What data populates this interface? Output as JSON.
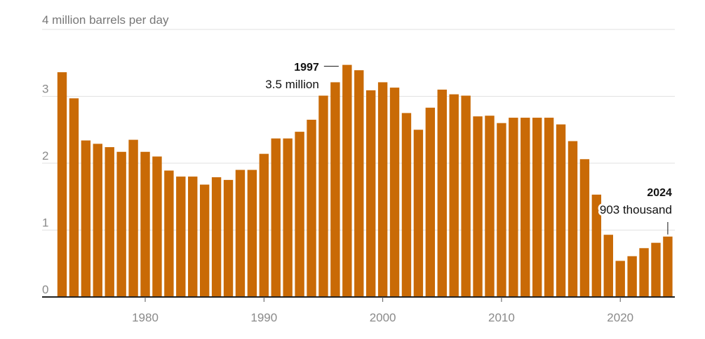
{
  "chart_data": {
    "type": "bar",
    "ylabel": "4 million barrels per day",
    "ylim": [
      0,
      4
    ],
    "yticks": [
      0,
      1,
      2,
      3
    ],
    "ytick_labels": [
      "0",
      "1",
      "2",
      "3"
    ],
    "xticks": [
      1980,
      1990,
      2000,
      2010,
      2020
    ],
    "xtick_labels": [
      "1980",
      "1990",
      "2000",
      "2010",
      "2020"
    ],
    "grid": true,
    "color": "#c96a06",
    "categories": [
      1973,
      1974,
      1975,
      1976,
      1977,
      1978,
      1979,
      1980,
      1981,
      1982,
      1983,
      1984,
      1985,
      1986,
      1987,
      1988,
      1989,
      1990,
      1991,
      1992,
      1993,
      1994,
      1995,
      1996,
      1997,
      1998,
      1999,
      2000,
      2001,
      2002,
      2003,
      2004,
      2005,
      2006,
      2007,
      2008,
      2009,
      2010,
      2011,
      2012,
      2013,
      2014,
      2015,
      2016,
      2017,
      2018,
      2019,
      2020,
      2021,
      2022,
      2023,
      2024
    ],
    "values": [
      3.36,
      2.97,
      2.34,
      2.29,
      2.24,
      2.17,
      2.35,
      2.17,
      2.1,
      1.89,
      1.8,
      1.8,
      1.68,
      1.79,
      1.75,
      1.9,
      1.9,
      2.14,
      2.37,
      2.37,
      2.47,
      2.65,
      3.01,
      3.21,
      3.47,
      3.39,
      3.09,
      3.21,
      3.13,
      2.75,
      2.5,
      2.83,
      3.1,
      3.03,
      3.01,
      2.7,
      2.71,
      2.6,
      2.68,
      2.68,
      2.68,
      2.68,
      2.58,
      2.33,
      2.06,
      1.53,
      0.93,
      0.54,
      0.61,
      0.73,
      0.81,
      0.903
    ],
    "annotations": [
      {
        "year": "1997",
        "label": "3.5 million"
      },
      {
        "year": "2024",
        "label": "903 thousand"
      }
    ]
  }
}
